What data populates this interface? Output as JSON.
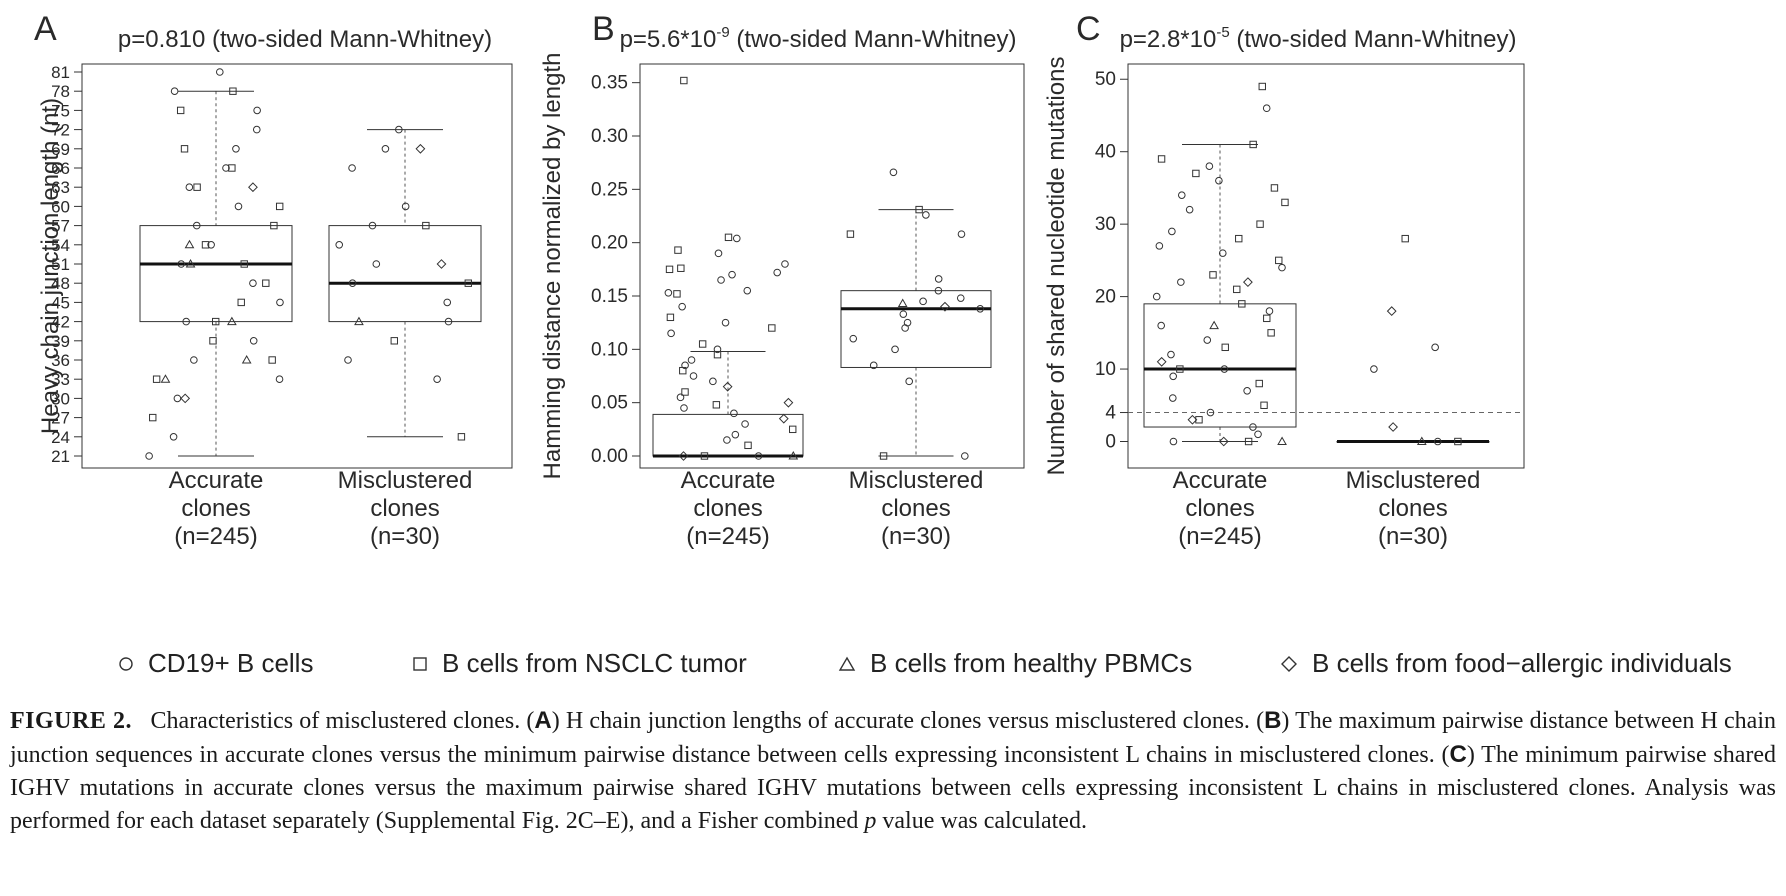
{
  "chart_data": [
    {
      "type": "boxplot",
      "panel_label": "A",
      "title": "p=0.810 (two-sided Mann-Whitney)",
      "ylabel": "Heavy chain junction length (nt)",
      "ylim": [
        21,
        81
      ],
      "yticks": [
        "21",
        "24",
        "27",
        "30",
        "33",
        "36",
        "39",
        "42",
        "45",
        "48",
        "51",
        "54",
        "57",
        "60",
        "63",
        "66",
        "69",
        "72",
        "75",
        "78",
        "81"
      ],
      "categories": [
        "Accurate clones (n=245)",
        "Misclustered clones (n=30)"
      ],
      "category_lines": [
        [
          "Accurate",
          "clones",
          "(n=245)"
        ],
        [
          "Misclustered",
          "clones",
          "(n=30)"
        ]
      ],
      "boxes": [
        {
          "name": "Accurate clones",
          "whisker_low": 21,
          "q1": 42,
          "median": 51,
          "q3": 57,
          "whisker_high": 78
        },
        {
          "name": "Misclustered clones",
          "whisker_low": 24,
          "q1": 42,
          "median": 48,
          "q3": 57,
          "whisker_high": 72
        }
      ],
      "points": [
        [
          [
            21,
            "c"
          ],
          [
            24,
            "c"
          ],
          [
            27,
            "s"
          ],
          [
            30,
            "d"
          ],
          [
            30,
            "c"
          ],
          [
            33,
            "s"
          ],
          [
            33,
            "c"
          ],
          [
            33,
            "t"
          ],
          [
            36,
            "c"
          ],
          [
            36,
            "s"
          ],
          [
            36,
            "t"
          ],
          [
            39,
            "c"
          ],
          [
            39,
            "s"
          ],
          [
            42,
            "c"
          ],
          [
            42,
            "s"
          ],
          [
            42,
            "t"
          ],
          [
            45,
            "c"
          ],
          [
            45,
            "s"
          ],
          [
            48,
            "c"
          ],
          [
            48,
            "s"
          ],
          [
            51,
            "c"
          ],
          [
            51,
            "s"
          ],
          [
            51,
            "t"
          ],
          [
            54,
            "c"
          ],
          [
            54,
            "s"
          ],
          [
            54,
            "t"
          ],
          [
            57,
            "c"
          ],
          [
            57,
            "s"
          ],
          [
            60,
            "c"
          ],
          [
            60,
            "s"
          ],
          [
            63,
            "c"
          ],
          [
            63,
            "s"
          ],
          [
            63,
            "d"
          ],
          [
            66,
            "c"
          ],
          [
            66,
            "s"
          ],
          [
            69,
            "c"
          ],
          [
            69,
            "s"
          ],
          [
            72,
            "c"
          ],
          [
            75,
            "s"
          ],
          [
            75,
            "c"
          ],
          [
            78,
            "s"
          ],
          [
            78,
            "c"
          ],
          [
            81,
            "c"
          ]
        ],
        [
          [
            24,
            "s"
          ],
          [
            33,
            "c"
          ],
          [
            36,
            "c"
          ],
          [
            39,
            "s"
          ],
          [
            42,
            "c"
          ],
          [
            42,
            "t"
          ],
          [
            45,
            "c"
          ],
          [
            48,
            "c"
          ],
          [
            48,
            "s"
          ],
          [
            51,
            "c"
          ],
          [
            51,
            "d"
          ],
          [
            54,
            "c"
          ],
          [
            57,
            "c"
          ],
          [
            57,
            "s"
          ],
          [
            60,
            "c"
          ],
          [
            66,
            "c"
          ],
          [
            69,
            "c"
          ],
          [
            69,
            "d"
          ],
          [
            72,
            "c"
          ]
        ]
      ]
    },
    {
      "type": "boxplot",
      "panel_label": "B",
      "title": "p=5.6*10-9 (two-sided Mann-Whitney)",
      "title_parts": {
        "base": "p=5.6*10",
        "exp": "-9",
        "rest": " (two-sided Mann-Whitney)"
      },
      "ylabel": "Hamming distance normalized by length",
      "ylim": [
        0,
        0.36
      ],
      "yticks": [
        "0.00",
        "0.05",
        "0.10",
        "0.15",
        "0.20",
        "0.25",
        "0.30",
        "0.35"
      ],
      "categories": [
        "Accurate clones (n=245)",
        "Misclustered clones (n=30)"
      ],
      "category_lines": [
        [
          "Accurate",
          "clones",
          "(n=245)"
        ],
        [
          "Misclustered",
          "clones",
          "(n=30)"
        ]
      ],
      "boxes": [
        {
          "name": "Accurate clones",
          "whisker_low": 0.0,
          "q1": 0.0,
          "median": 0.0,
          "q3": 0.039,
          "whisker_high": 0.098
        },
        {
          "name": "Misclustered clones",
          "whisker_low": 0.0,
          "q1": 0.083,
          "median": 0.138,
          "q3": 0.155,
          "whisker_high": 0.231
        }
      ],
      "points": [
        [
          [
            0.352,
            "s"
          ],
          [
            0.205,
            "s"
          ],
          [
            0.204,
            "c"
          ],
          [
            0.193,
            "s"
          ],
          [
            0.19,
            "c"
          ],
          [
            0.18,
            "c"
          ],
          [
            0.176,
            "s"
          ],
          [
            0.175,
            "s"
          ],
          [
            0.172,
            "c"
          ],
          [
            0.17,
            "c"
          ],
          [
            0.165,
            "c"
          ],
          [
            0.155,
            "c"
          ],
          [
            0.153,
            "c"
          ],
          [
            0.152,
            "s"
          ],
          [
            0.14,
            "c"
          ],
          [
            0.13,
            "s"
          ],
          [
            0.125,
            "c"
          ],
          [
            0.12,
            "s"
          ],
          [
            0.115,
            "c"
          ],
          [
            0.105,
            "s"
          ],
          [
            0.1,
            "c"
          ],
          [
            0.095,
            "s"
          ],
          [
            0.09,
            "c"
          ],
          [
            0.085,
            "c"
          ],
          [
            0.08,
            "s"
          ],
          [
            0.075,
            "c"
          ],
          [
            0.07,
            "c"
          ],
          [
            0.065,
            "d"
          ],
          [
            0.06,
            "s"
          ],
          [
            0.055,
            "c"
          ],
          [
            0.05,
            "d"
          ],
          [
            0.048,
            "s"
          ],
          [
            0.045,
            "c"
          ],
          [
            0.04,
            "c"
          ],
          [
            0.035,
            "d"
          ],
          [
            0.03,
            "c"
          ],
          [
            0.025,
            "s"
          ],
          [
            0.02,
            "c"
          ],
          [
            0.015,
            "c"
          ],
          [
            0.01,
            "s"
          ],
          [
            0.0,
            "c"
          ],
          [
            0.0,
            "s"
          ],
          [
            0.0,
            "t"
          ],
          [
            0.0,
            "d"
          ]
        ],
        [
          [
            0.266,
            "c"
          ],
          [
            0.231,
            "s"
          ],
          [
            0.226,
            "c"
          ],
          [
            0.208,
            "c"
          ],
          [
            0.208,
            "s"
          ],
          [
            0.166,
            "c"
          ],
          [
            0.155,
            "c"
          ],
          [
            0.148,
            "c"
          ],
          [
            0.145,
            "c"
          ],
          [
            0.143,
            "t"
          ],
          [
            0.14,
            "d"
          ],
          [
            0.138,
            "c"
          ],
          [
            0.133,
            "c"
          ],
          [
            0.125,
            "c"
          ],
          [
            0.12,
            "c"
          ],
          [
            0.11,
            "c"
          ],
          [
            0.1,
            "c"
          ],
          [
            0.085,
            "c"
          ],
          [
            0.07,
            "c"
          ],
          [
            0.0,
            "c"
          ],
          [
            0.0,
            "s"
          ]
        ]
      ]
    },
    {
      "type": "boxplot",
      "panel_label": "C",
      "title": "p=2.8*10-5 (two-sided Mann-Whitney)",
      "title_parts": {
        "base": "p=2.8*10",
        "exp": "-5",
        "rest": " (two-sided Mann-Whitney)"
      },
      "ylabel": "Number of shared nucleotide mutations",
      "ylim": [
        -2,
        51
      ],
      "yticks": [
        "0",
        "4",
        "10",
        "20",
        "30",
        "40",
        "50"
      ],
      "reference_line": 4,
      "categories": [
        "Accurate clones (n=245)",
        "Misclustered clones (n=30)"
      ],
      "category_lines": [
        [
          "Accurate",
          "clones",
          "(n=245)"
        ],
        [
          "Misclustered",
          "clones",
          "(n=30)"
        ]
      ],
      "boxes": [
        {
          "name": "Accurate clones",
          "whisker_low": 0,
          "q1": 2,
          "median": 10,
          "q3": 19,
          "whisker_high": 41
        },
        {
          "name": "Misclustered clones",
          "whisker_low": 0,
          "q1": 0,
          "median": 0,
          "q3": 0,
          "whisker_high": 0
        }
      ],
      "points": [
        [
          [
            49,
            "s"
          ],
          [
            46,
            "c"
          ],
          [
            41,
            "s"
          ],
          [
            39,
            "s"
          ],
          [
            38,
            "c"
          ],
          [
            37,
            "s"
          ],
          [
            36,
            "c"
          ],
          [
            35,
            "s"
          ],
          [
            34,
            "c"
          ],
          [
            33,
            "s"
          ],
          [
            32,
            "c"
          ],
          [
            30,
            "s"
          ],
          [
            29,
            "c"
          ],
          [
            28,
            "s"
          ],
          [
            27,
            "c"
          ],
          [
            26,
            "c"
          ],
          [
            25,
            "s"
          ],
          [
            24,
            "c"
          ],
          [
            23,
            "s"
          ],
          [
            22,
            "d"
          ],
          [
            22,
            "c"
          ],
          [
            21,
            "s"
          ],
          [
            20,
            "c"
          ],
          [
            19,
            "s"
          ],
          [
            18,
            "c"
          ],
          [
            17,
            "s"
          ],
          [
            16,
            "t"
          ],
          [
            16,
            "c"
          ],
          [
            15,
            "s"
          ],
          [
            14,
            "c"
          ],
          [
            13,
            "s"
          ],
          [
            12,
            "c"
          ],
          [
            11,
            "d"
          ],
          [
            10,
            "s"
          ],
          [
            10,
            "c"
          ],
          [
            9,
            "c"
          ],
          [
            8,
            "s"
          ],
          [
            7,
            "c"
          ],
          [
            6,
            "c"
          ],
          [
            5,
            "s"
          ],
          [
            4,
            "c"
          ],
          [
            3,
            "d"
          ],
          [
            3,
            "s"
          ],
          [
            2,
            "c"
          ],
          [
            1,
            "c"
          ],
          [
            0,
            "c"
          ],
          [
            0,
            "s"
          ],
          [
            0,
            "t"
          ],
          [
            0,
            "d"
          ]
        ],
        [
          [
            28,
            "s"
          ],
          [
            18,
            "d"
          ],
          [
            13,
            "c"
          ],
          [
            10,
            "c"
          ],
          [
            2,
            "d"
          ],
          [
            0,
            "c"
          ],
          [
            0,
            "s"
          ],
          [
            0,
            "t"
          ]
        ]
      ]
    }
  ],
  "legend": {
    "items": [
      {
        "symbol": "circle",
        "label": "CD19+ B cells"
      },
      {
        "symbol": "square",
        "label": "B cells from NSCLC tumor"
      },
      {
        "symbol": "triangle",
        "label": "B cells from healthy PBMCs"
      },
      {
        "symbol": "diamond",
        "label": "B cells from food−allergic individuals"
      }
    ]
  },
  "caption": {
    "figure_label": "FIGURE 2.",
    "intro": "Characteristics of misclustered clones. (",
    "label_a": "A",
    "text_a": ") H chain junction lengths of accurate clones versus misclustered clones. (",
    "label_b": "B",
    "text_b": ") The maximum pairwise distance between H chain junction sequences in accurate clones versus the minimum pairwise distance between cells expressing inconsistent L chains in misclustered clones. (",
    "label_c": "C",
    "text_c": ") The minimum pairwise shared IGHV mutations in accurate clones versus the maximum pairwise shared IGHV mutations between cells expressing inconsistent L chains in misclustered clones. Analysis was performed for each dataset separately (Supplemental Fig. 2C–E), and a Fisher combined ",
    "p_italic": "p",
    "text_end": " value was calculated."
  }
}
